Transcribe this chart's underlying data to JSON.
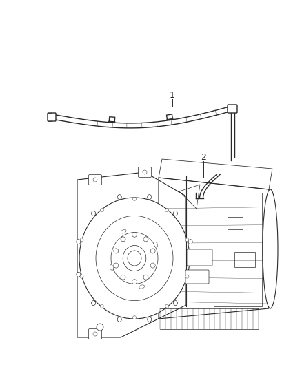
{
  "background_color": "#ffffff",
  "line_color": "#2a2a2a",
  "label1": "1",
  "label2": "2",
  "fig_width": 4.38,
  "fig_height": 5.33,
  "dpi": 100,
  "tube_lw": 1.0,
  "body_lw": 0.8,
  "detail_lw": 0.5
}
